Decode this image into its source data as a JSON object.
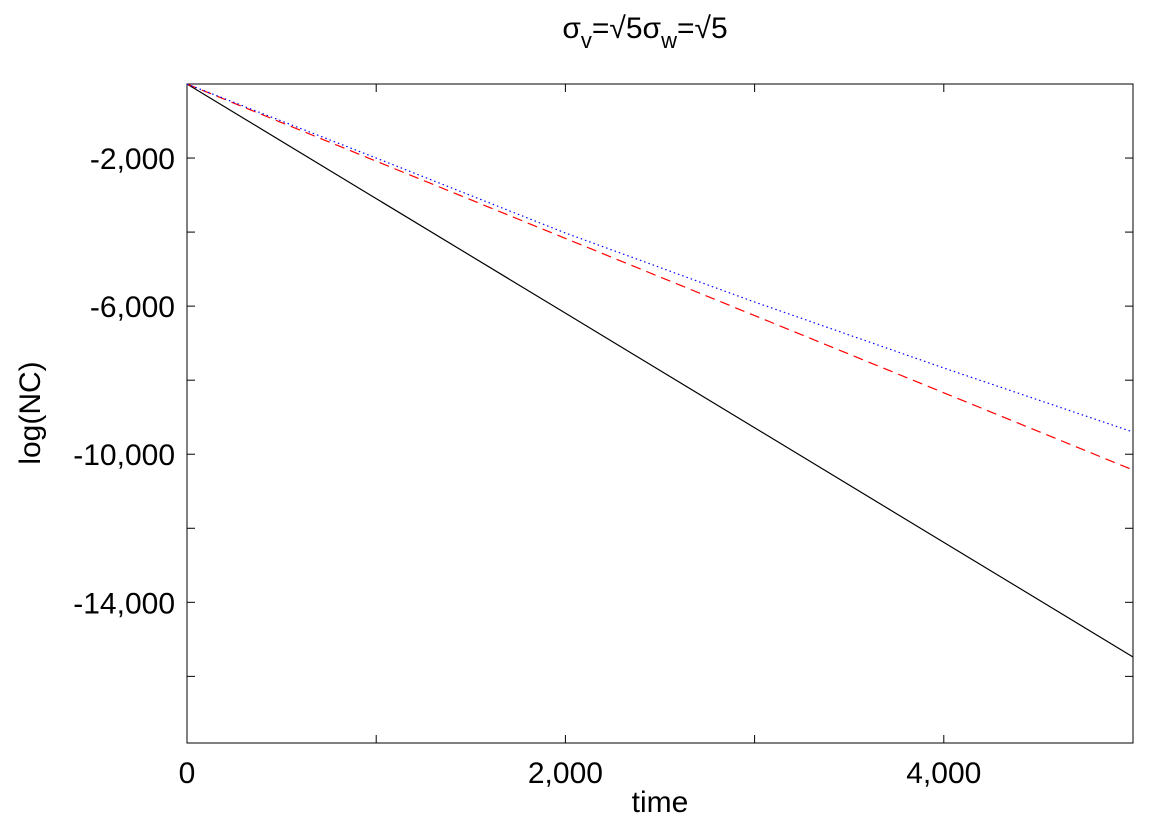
{
  "chart_data": {
    "type": "line",
    "title": [
      {
        "symbol": "σ",
        "subscript": "v",
        "value": "=√5"
      },
      {
        "symbol": "σ",
        "subscript": "w",
        "value": "=√5"
      }
    ],
    "x_label": "time",
    "y_label": "log(NC)",
    "x": [
      0,
      1000,
      2000,
      3000,
      4000,
      5000
    ],
    "series": [
      {
        "color": "#000000",
        "dash": "none",
        "values": [
          0,
          -3095,
          -6190,
          -9285,
          -12380,
          -15477
        ]
      },
      {
        "color": "#ff0000",
        "dash": "10 6",
        "values": [
          0,
          -2085,
          -4170,
          -6255,
          -8340,
          -10426
        ]
      },
      {
        "color": "#0000ff",
        "dash": "1.5 3",
        "values": [
          0,
          -2000,
          -4025,
          -5888,
          -7671,
          -9400
        ]
      }
    ],
    "xlim": [
      0,
      5000
    ],
    "ylim": [
      -17800,
      0
    ],
    "xticks": [
      0,
      {
        "value": 2000,
        "label": "2,000"
      },
      {
        "value": 4000,
        "label": "4,000"
      }
    ],
    "xminor_ticks": [
      1000,
      3000
    ],
    "yticks": [
      {
        "value": -2000,
        "label": "-2,000"
      },
      {
        "value": -6000,
        "label": "-6,000"
      },
      {
        "value": -10000,
        "label": "-10,000"
      },
      {
        "value": -14000,
        "label": "-14,000"
      }
    ],
    "yminor_ticks": [
      -4000,
      -8000,
      -12000,
      -16000
    ],
    "grid": false
  }
}
